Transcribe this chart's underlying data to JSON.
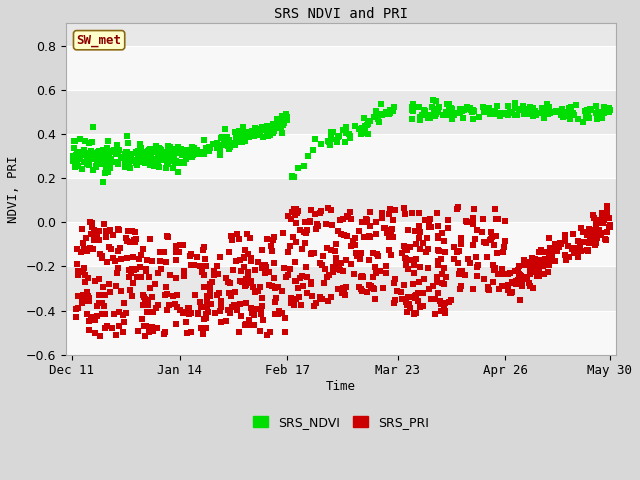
{
  "title": "SRS NDVI and PRI",
  "xlabel": "Time",
  "ylabel": "NDVI, PRI",
  "ylim": [
    -0.6,
    0.9
  ],
  "yticks": [
    -0.6,
    -0.4,
    -0.2,
    0.0,
    0.2,
    0.4,
    0.6,
    0.8
  ],
  "fig_bg_color": "#d8d8d8",
  "plot_bg_color": "#e8e8e8",
  "band_color": "#f8f8f8",
  "annotation_text": "SW_met",
  "annotation_color": "#8b0000",
  "annotation_bg": "#ffffcc",
  "annotation_edge": "#8b6914",
  "ndvi_color": "#00dd00",
  "pri_color": "#cc0000",
  "marker_size": 18,
  "legend_labels": [
    "SRS_NDVI",
    "SRS_PRI"
  ],
  "xtick_labels": [
    "Dec 11",
    "Jan 14",
    "Feb 17",
    "Mar 23",
    "Apr 26",
    "May 30"
  ],
  "xtick_positions": [
    0,
    34,
    68,
    103,
    137,
    170
  ]
}
